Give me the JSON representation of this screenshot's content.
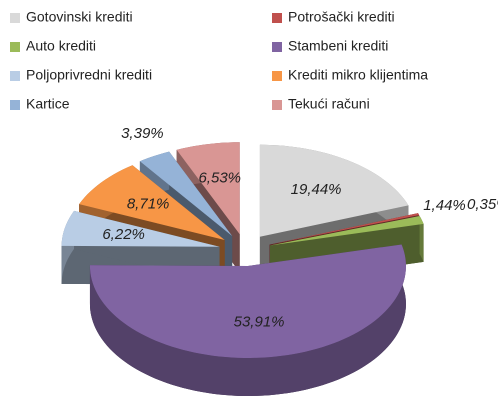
{
  "chart_data": {
    "type": "pie",
    "categories": [
      "Gotovinski krediti",
      "Potrošački krediti",
      "Auto krediti",
      "Stambeni krediti",
      "Poljoprivredni krediti",
      "Krediti mikro klijentima",
      "Kartice",
      "Tekući računi"
    ],
    "values": [
      19.44,
      0.35,
      1.44,
      53.91,
      6.22,
      8.71,
      3.39,
      6.53
    ],
    "value_labels": [
      "19,44%",
      "0,35%",
      "1,44%",
      "53,91%",
      "6,22%",
      "8,71%",
      "3,39%",
      "6,53%"
    ],
    "colors": [
      "#d9d9d9",
      "#c0504d",
      "#9bbb59",
      "#8064a2",
      "#b9cde5",
      "#f79646",
      "#95b3d7",
      "#d99694"
    ],
    "legend": "top"
  }
}
